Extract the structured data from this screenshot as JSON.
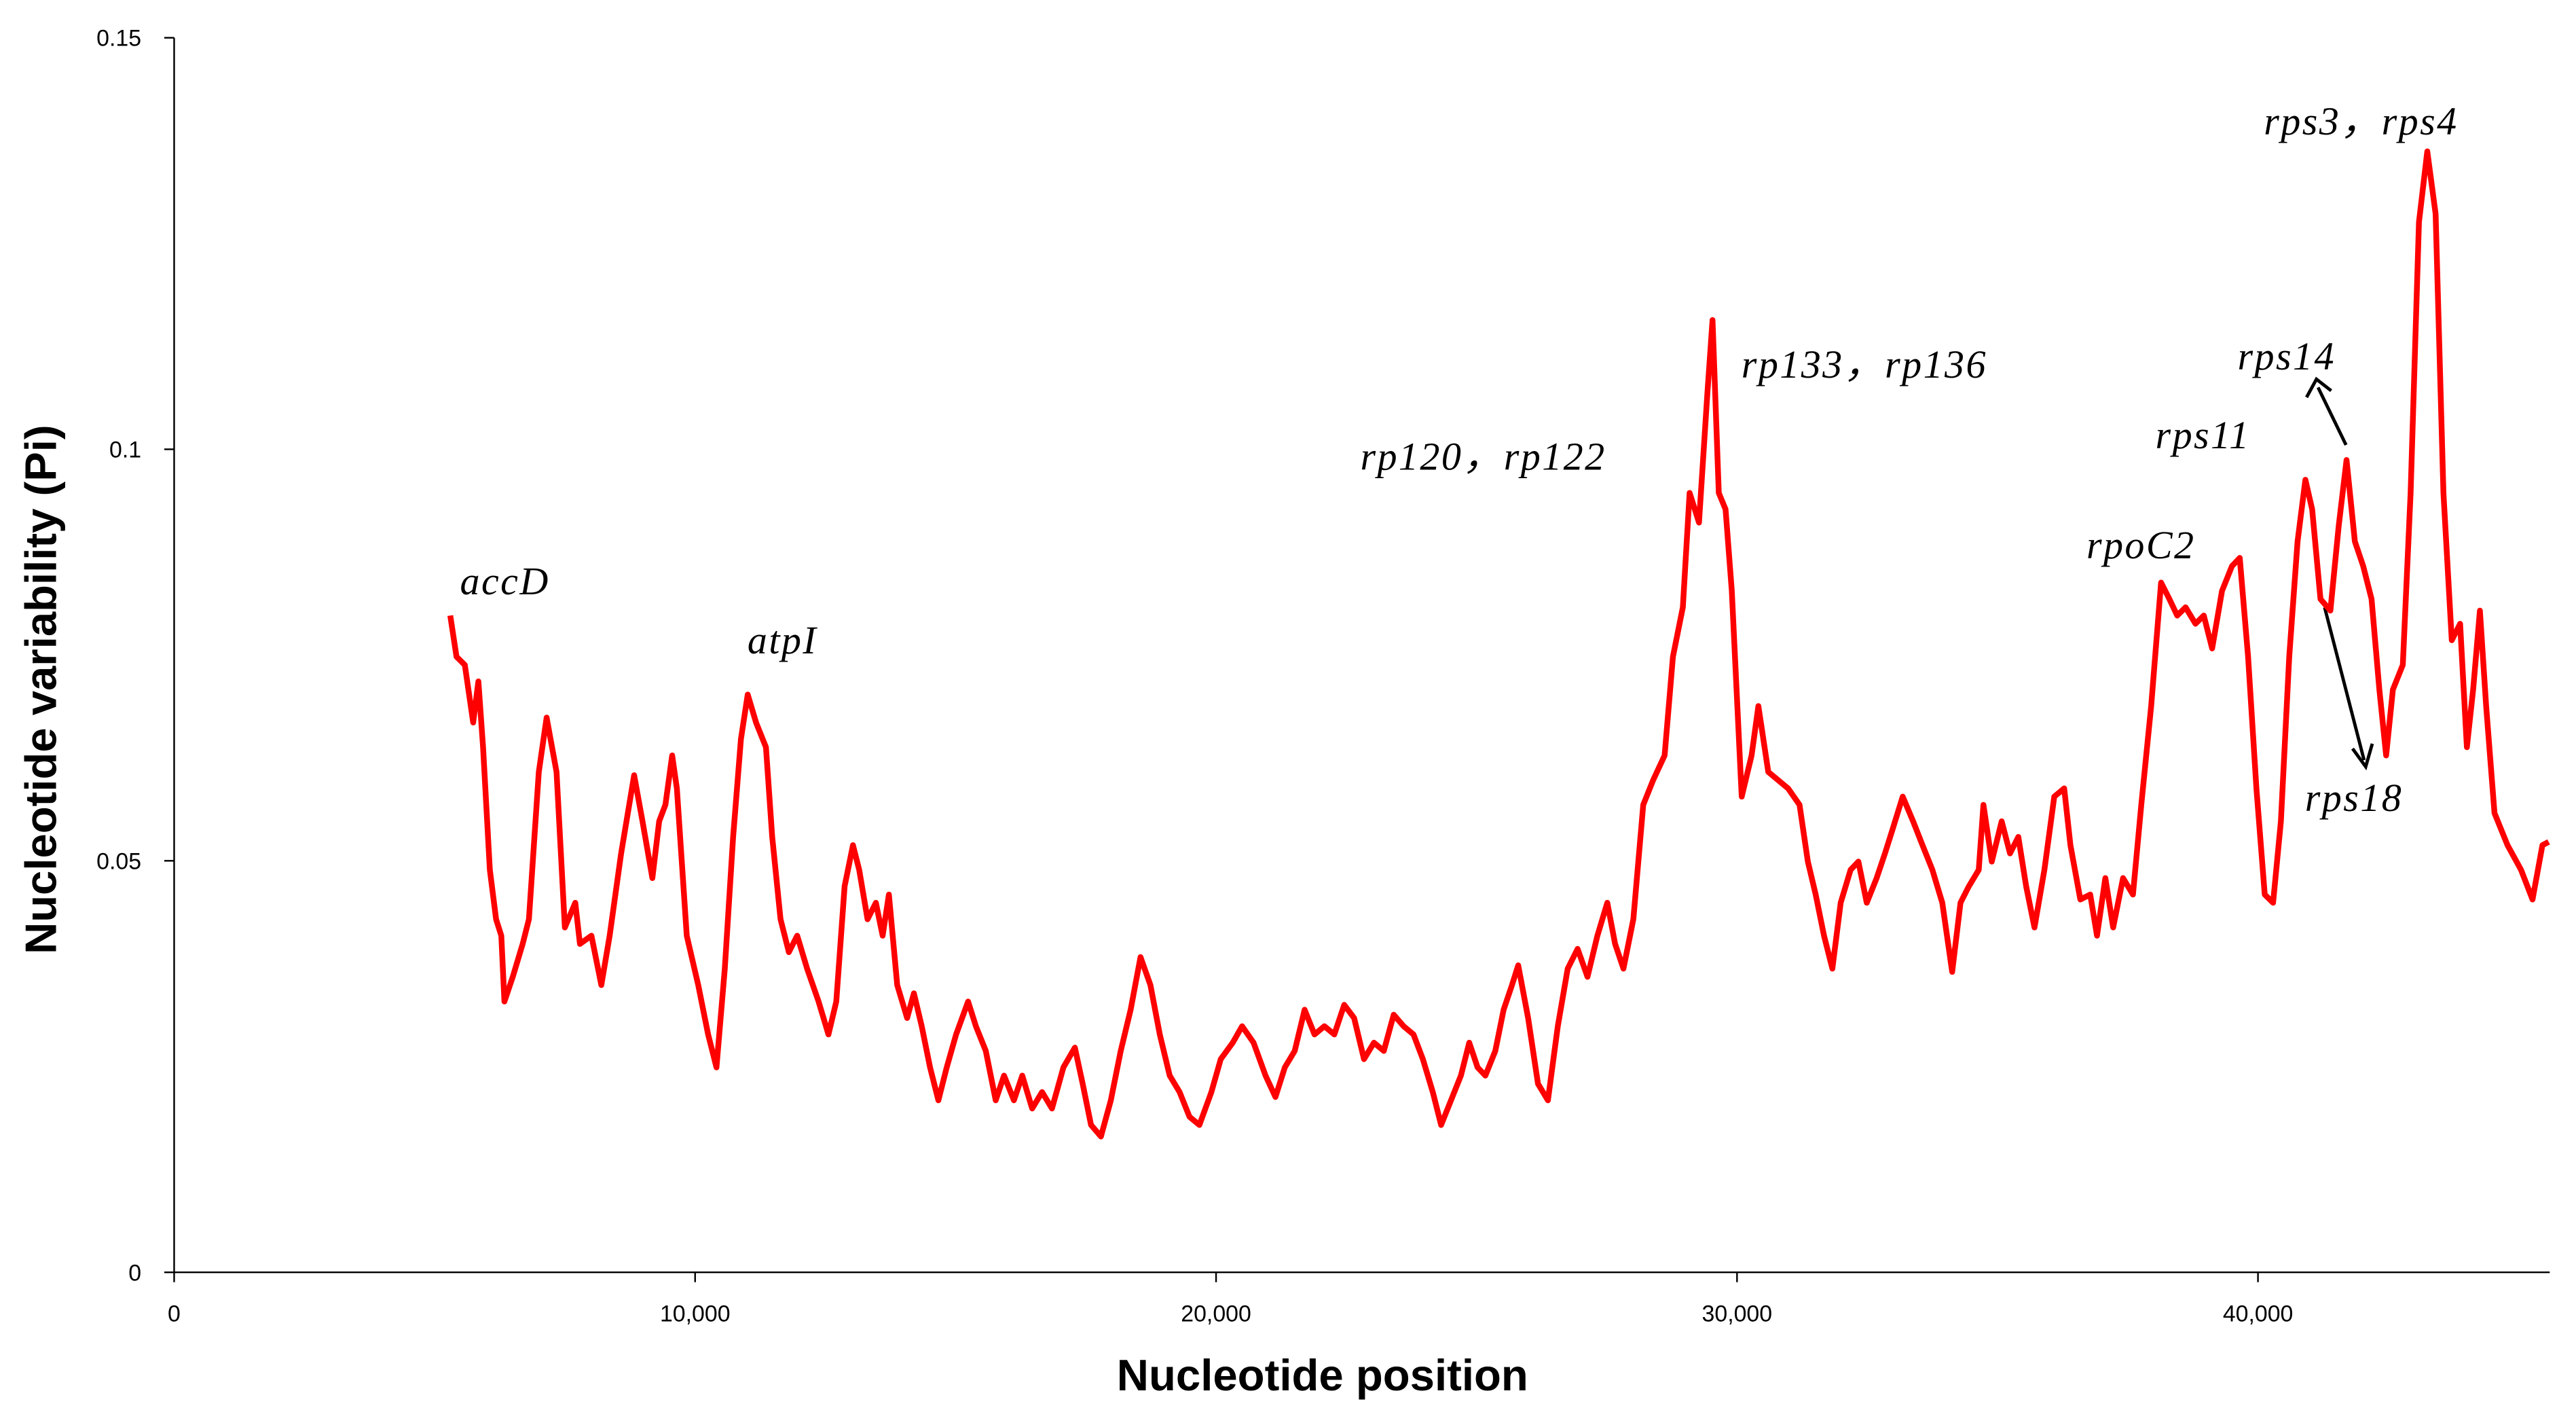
{
  "chart_data": {
    "type": "line",
    "xlabel": "Nucleotide position",
    "ylabel": "Nucleotide variability (Pi)",
    "color": "#ff0000",
    "xlim": [
      0,
      45600
    ],
    "ylim": [
      0,
      0.15
    ],
    "xticks": [
      0,
      {
        "value": 10000,
        "label": "10,000"
      },
      {
        "value": 20000,
        "label": "20,000"
      },
      {
        "value": 30000,
        "label": "30,000"
      },
      {
        "value": 40000,
        "label": "40,000"
      }
    ],
    "yticks": [
      0,
      0.05,
      0.1,
      0.15
    ],
    "annotations": [
      "accD",
      "atpI",
      "rp120，rp122",
      "rp133，rp136",
      "rpoC2",
      "rps11",
      "rps14",
      "rps18",
      "rps3，rps4"
    ],
    "x": [
      5300,
      5420,
      5580,
      5740,
      5840,
      5930,
      6060,
      6180,
      6280,
      6340,
      6500,
      6690,
      6810,
      7000,
      7150,
      7340,
      7500,
      7700,
      7790,
      8010,
      8200,
      8360,
      8580,
      8830,
      8990,
      9180,
      9310,
      9430,
      9560,
      9650,
      9840,
      10060,
      10250,
      10410,
      10570,
      10730,
      10880,
      11010,
      11170,
      11360,
      11480,
      11640,
      11800,
      11960,
      12150,
      12370,
      12560,
      12710,
      12870,
      13030,
      13150,
      13310,
      13470,
      13600,
      13720,
      13880,
      14070,
      14200,
      14350,
      14510,
      14670,
      14830,
      15010,
      15240,
      15390,
      15580,
      15770,
      15930,
      16120,
      16280,
      16470,
      16660,
      16850,
      17070,
      17290,
      17440,
      17600,
      17790,
      17980,
      18170,
      18360,
      18550,
      18740,
      18920,
      19110,
      19300,
      19490,
      19680,
      19910,
      20090,
      20320,
      20500,
      20720,
      20950,
      21140,
      21320,
      21510,
      21700,
      21890,
      22080,
      22270,
      22460,
      22650,
      22840,
      23030,
      23220,
      23410,
      23600,
      23790,
      23970,
      24160,
      24320,
      24510,
      24700,
      24860,
      25020,
      25170,
      25360,
      25520,
      25680,
      25800,
      25990,
      26180,
      26370,
      26560,
      26750,
      26940,
      27130,
      27320,
      27510,
      27660,
      27820,
      28010,
      28200,
      28390,
      28610,
      28770,
      28960,
      29090,
      29270,
      29430,
      29530,
      29650,
      29780,
      29900,
      30090,
      30280,
      30410,
      30600,
      30790,
      30980,
      31200,
      31360,
      31510,
      31670,
      31830,
      31990,
      32180,
      32330,
      32490,
      32680,
      32840,
      32990,
      33180,
      33380,
      33560,
      33750,
      33940,
      34130,
      34290,
      34450,
      34640,
      34730,
      34890,
      35080,
      35240,
      35400,
      35550,
      35710,
      35900,
      36090,
      36280,
      36400,
      36590,
      36780,
      36910,
      37070,
      37220,
      37410,
      37600,
      37760,
      37950,
      38140,
      38300,
      38450,
      38610,
      38800,
      38960,
      39120,
      39310,
      39500,
      39650,
      39810,
      39970,
      40130,
      40290,
      40440,
      40600,
      40760,
      40910,
      41040,
      41200,
      41390,
      41550,
      41700,
      41860,
      42020,
      42180,
      42330,
      42460,
      42590,
      42780,
      42930,
      43090,
      43250,
      43410,
      43560,
      43720,
      43880,
      44010,
      44130,
      44260,
      44380,
      44540,
      44790,
      45050,
      45270,
      45460,
      45580
    ],
    "values": [
      0.0798,
      0.0748,
      0.0738,
      0.0668,
      0.0718,
      0.0638,
      0.0489,
      0.0429,
      0.0409,
      0.0329,
      0.0359,
      0.0399,
      0.0429,
      0.0608,
      0.0674,
      0.0608,
      0.0419,
      0.0449,
      0.0399,
      0.0409,
      0.0349,
      0.0409,
      0.0509,
      0.0604,
      0.0548,
      0.0479,
      0.0548,
      0.0568,
      0.0628,
      0.0588,
      0.0409,
      0.0349,
      0.0289,
      0.0249,
      0.0369,
      0.0529,
      0.0648,
      0.0702,
      0.0668,
      0.0638,
      0.0529,
      0.0429,
      0.0389,
      0.0409,
      0.0369,
      0.0329,
      0.0289,
      0.0329,
      0.0469,
      0.0519,
      0.0489,
      0.0429,
      0.0449,
      0.0409,
      0.0459,
      0.0349,
      0.0309,
      0.0339,
      0.0299,
      0.0249,
      0.0209,
      0.0249,
      0.0289,
      0.0329,
      0.0299,
      0.0269,
      0.0209,
      0.0239,
      0.0209,
      0.0239,
      0.0199,
      0.0219,
      0.0199,
      0.0249,
      0.0273,
      0.0229,
      0.0179,
      0.0165,
      0.0209,
      0.0269,
      0.0319,
      0.0383,
      0.0349,
      0.0289,
      0.0239,
      0.0219,
      0.0189,
      0.0179,
      0.0219,
      0.0259,
      0.0279,
      0.0299,
      0.0279,
      0.0239,
      0.0213,
      0.0249,
      0.0269,
      0.0319,
      0.0289,
      0.0299,
      0.0289,
      0.0325,
      0.0309,
      0.0259,
      0.0279,
      0.0269,
      0.0313,
      0.0299,
      0.0289,
      0.0259,
      0.0219,
      0.0179,
      0.0209,
      0.0239,
      0.0279,
      0.0249,
      0.0239,
      0.0269,
      0.0319,
      0.0349,
      0.0373,
      0.0309,
      0.0229,
      0.0209,
      0.0299,
      0.0369,
      0.0393,
      0.0359,
      0.0409,
      0.0449,
      0.0399,
      0.0369,
      0.0429,
      0.0568,
      0.0598,
      0.0628,
      0.0748,
      0.0808,
      0.0947,
      0.0911,
      0.1067,
      0.1157,
      0.0947,
      0.0927,
      0.0828,
      0.0578,
      0.0628,
      0.0688,
      0.0608,
      0.0598,
      0.0588,
      0.0568,
      0.0499,
      0.0459,
      0.0409,
      0.0369,
      0.0449,
      0.0489,
      0.0499,
      0.0449,
      0.0479,
      0.0509,
      0.0539,
      0.0578,
      0.0548,
      0.0519,
      0.0489,
      0.0449,
      0.0365,
      0.0449,
      0.0469,
      0.0489,
      0.0568,
      0.0499,
      0.0548,
      0.0509,
      0.0529,
      0.0469,
      0.0419,
      0.0489,
      0.0578,
      0.0588,
      0.0519,
      0.0453,
      0.0459,
      0.0409,
      0.0479,
      0.0419,
      0.0479,
      0.0459,
      0.0568,
      0.0688,
      0.0838,
      0.0818,
      0.0798,
      0.0808,
      0.0788,
      0.0798,
      0.0758,
      0.0828,
      0.0858,
      0.0868,
      0.0748,
      0.0588,
      0.0459,
      0.0449,
      0.0548,
      0.0748,
      0.0888,
      0.0963,
      0.0927,
      0.0818,
      0.0804,
      0.0907,
      0.0987,
      0.0888,
      0.0858,
      0.0818,
      0.0708,
      0.0628,
      0.0708,
      0.0738,
      0.0947,
      0.1276,
      0.1362,
      0.1286,
      0.0947,
      0.0768,
      0.0788,
      0.0638,
      0.0708,
      0.0804,
      0.0688,
      0.0558,
      0.0519,
      0.0489,
      0.0453,
      0.0519,
      0.0523
    ]
  }
}
